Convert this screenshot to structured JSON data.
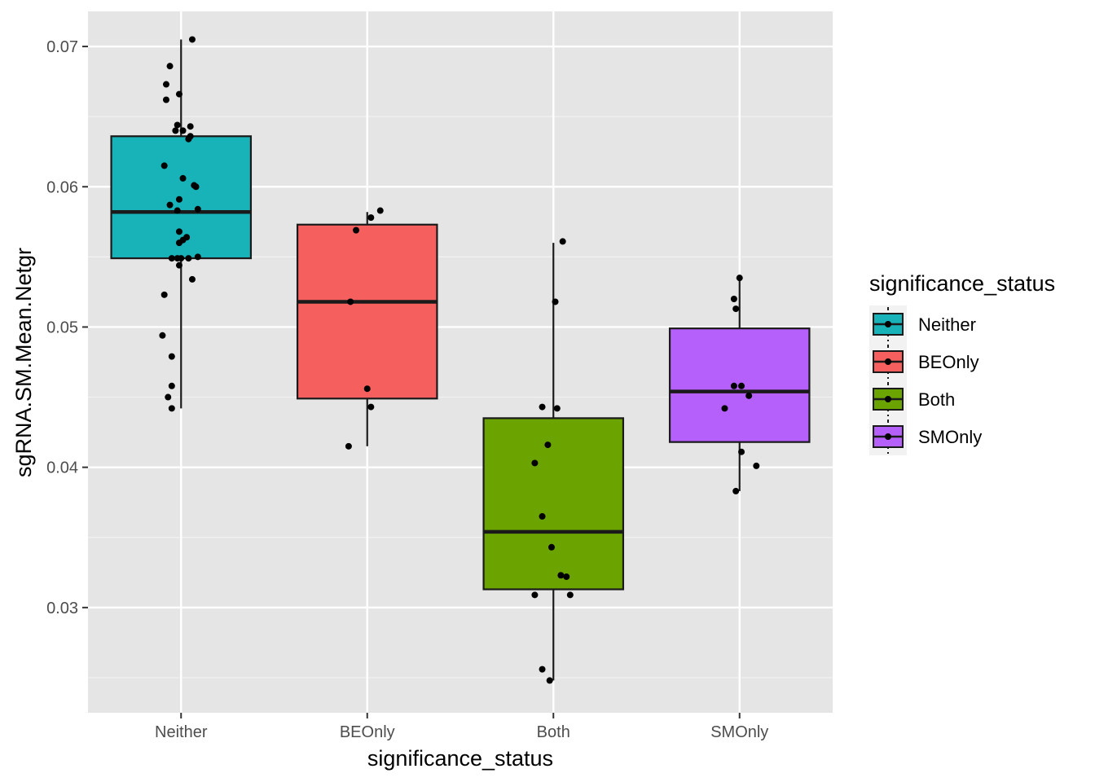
{
  "chart_data": {
    "type": "box",
    "xlabel": "significance_status",
    "ylabel": "sgRNA.SM.Mean.Netgr",
    "ylim": [
      0.0225,
      0.0725
    ],
    "yticks": [
      0.03,
      0.04,
      0.05,
      0.06,
      0.07
    ],
    "ytick_labels": [
      "0.03",
      "0.04",
      "0.05",
      "0.06",
      "0.07"
    ],
    "categories": [
      "Neither",
      "BEOnly",
      "Both",
      "SMOnly"
    ],
    "legend": {
      "title": "significance_status",
      "position": "right",
      "entries": [
        "Neither",
        "BEOnly",
        "Both",
        "SMOnly"
      ]
    },
    "series": [
      {
        "name": "Neither",
        "color": "#17b3b8",
        "box": {
          "q1": 0.0549,
          "median": 0.0582,
          "q3": 0.0636,
          "whisker_low": 0.0442,
          "whisker_high": 0.0705
        },
        "points": [
          {
            "dx": 0.06,
            "y": 0.0705
          },
          {
            "dx": -0.06,
            "y": 0.0686
          },
          {
            "dx": -0.08,
            "y": 0.0673
          },
          {
            "dx": -0.01,
            "y": 0.0666
          },
          {
            "dx": -0.08,
            "y": 0.0662
          },
          {
            "dx": -0.02,
            "y": 0.0644
          },
          {
            "dx": 0.05,
            "y": 0.0643
          },
          {
            "dx": -0.03,
            "y": 0.064
          },
          {
            "dx": 0.01,
            "y": 0.064
          },
          {
            "dx": 0.05,
            "y": 0.0636
          },
          {
            "dx": 0.04,
            "y": 0.0634
          },
          {
            "dx": -0.09,
            "y": 0.0615
          },
          {
            "dx": 0.01,
            "y": 0.0606
          },
          {
            "dx": 0.07,
            "y": 0.0601
          },
          {
            "dx": 0.08,
            "y": 0.06
          },
          {
            "dx": -0.01,
            "y": 0.0591
          },
          {
            "dx": -0.06,
            "y": 0.0587
          },
          {
            "dx": -0.02,
            "y": 0.0583
          },
          {
            "dx": 0.09,
            "y": 0.0584
          },
          {
            "dx": -0.01,
            "y": 0.0568
          },
          {
            "dx": 0.03,
            "y": 0.0564
          },
          {
            "dx": 0.01,
            "y": 0.0562
          },
          {
            "dx": -0.01,
            "y": 0.056
          },
          {
            "dx": -0.05,
            "y": 0.0549
          },
          {
            "dx": -0.02,
            "y": 0.0549
          },
          {
            "dx": 0.0,
            "y": 0.0549
          },
          {
            "dx": 0.04,
            "y": 0.0549
          },
          {
            "dx": 0.09,
            "y": 0.055
          },
          {
            "dx": -0.01,
            "y": 0.0544
          },
          {
            "dx": 0.06,
            "y": 0.0534
          },
          {
            "dx": -0.09,
            "y": 0.0523
          },
          {
            "dx": -0.1,
            "y": 0.0494
          },
          {
            "dx": -0.05,
            "y": 0.0479
          },
          {
            "dx": -0.05,
            "y": 0.0458
          },
          {
            "dx": -0.07,
            "y": 0.045
          },
          {
            "dx": -0.05,
            "y": 0.0442
          }
        ]
      },
      {
        "name": "BEOnly",
        "color": "#f5605e",
        "box": {
          "q1": 0.0449,
          "median": 0.0518,
          "q3": 0.0573,
          "whisker_low": 0.0415,
          "whisker_high": 0.0582
        },
        "points": [
          {
            "dx": 0.07,
            "y": 0.0583
          },
          {
            "dx": 0.02,
            "y": 0.0578
          },
          {
            "dx": -0.06,
            "y": 0.0569
          },
          {
            "dx": -0.09,
            "y": 0.0518
          },
          {
            "dx": 0.0,
            "y": 0.0456
          },
          {
            "dx": 0.02,
            "y": 0.0443
          },
          {
            "dx": -0.1,
            "y": 0.0415
          }
        ]
      },
      {
        "name": "Both",
        "color": "#6ba300",
        "box": {
          "q1": 0.0313,
          "median": 0.0354,
          "q3": 0.0435,
          "whisker_low": 0.0248,
          "whisker_high": 0.056
        },
        "points": [
          {
            "dx": 0.05,
            "y": 0.0561
          },
          {
            "dx": 0.01,
            "y": 0.0518
          },
          {
            "dx": -0.06,
            "y": 0.0443
          },
          {
            "dx": 0.02,
            "y": 0.0442
          },
          {
            "dx": -0.03,
            "y": 0.0416
          },
          {
            "dx": -0.1,
            "y": 0.0403
          },
          {
            "dx": -0.06,
            "y": 0.0365
          },
          {
            "dx": -0.01,
            "y": 0.0343
          },
          {
            "dx": 0.04,
            "y": 0.0323
          },
          {
            "dx": 0.07,
            "y": 0.0322
          },
          {
            "dx": -0.1,
            "y": 0.0309
          },
          {
            "dx": 0.09,
            "y": 0.0309
          },
          {
            "dx": -0.06,
            "y": 0.0256
          },
          {
            "dx": -0.02,
            "y": 0.0248
          }
        ]
      },
      {
        "name": "SMOnly",
        "color": "#b660fb",
        "box": {
          "q1": 0.0418,
          "median": 0.0454,
          "q3": 0.0499,
          "whisker_low": 0.0383,
          "whisker_high": 0.0535
        },
        "points": [
          {
            "dx": 0.0,
            "y": 0.0535
          },
          {
            "dx": -0.03,
            "y": 0.052
          },
          {
            "dx": -0.02,
            "y": 0.0513
          },
          {
            "dx": -0.03,
            "y": 0.0458
          },
          {
            "dx": 0.01,
            "y": 0.0458
          },
          {
            "dx": 0.05,
            "y": 0.0451
          },
          {
            "dx": -0.08,
            "y": 0.0442
          },
          {
            "dx": 0.01,
            "y": 0.0411
          },
          {
            "dx": 0.09,
            "y": 0.0401
          },
          {
            "dx": -0.02,
            "y": 0.0383
          }
        ]
      }
    ]
  }
}
